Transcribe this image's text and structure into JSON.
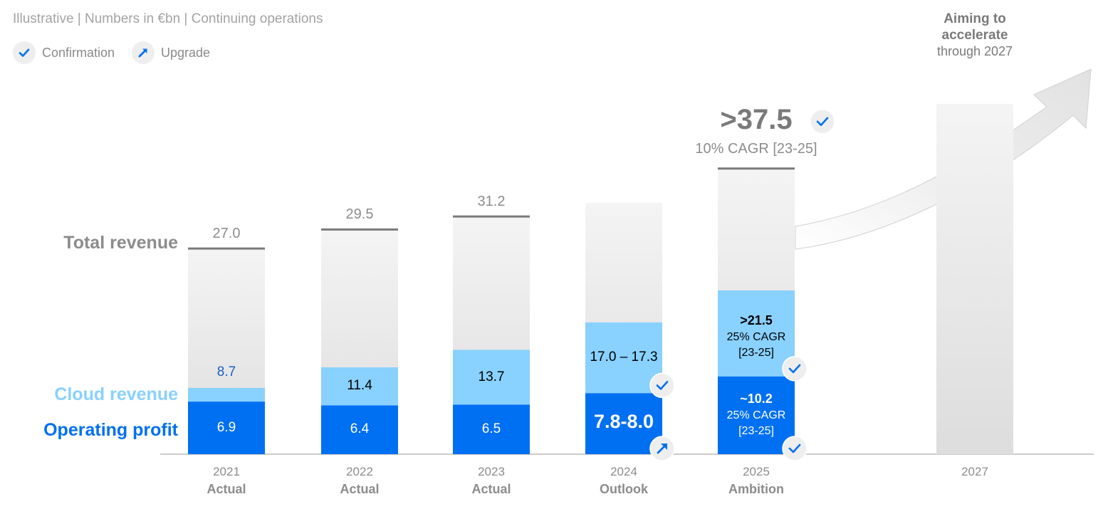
{
  "header": "Illustrative | Numbers in €bn | Continuing operations",
  "legend": {
    "confirmation": "Confirmation",
    "upgrade": "Upgrade"
  },
  "colors": {
    "operating_profit": "#0070f2",
    "cloud_revenue": "#89d1ff",
    "total_revenue": "#e6e6e6",
    "total_line": "#7a7a7a",
    "axis": "#cccccc",
    "badge": "#eeeeee"
  },
  "chart_data": {
    "type": "bar",
    "stacked": true,
    "title": "Illustrative | Numbers in €bn | Continuing operations",
    "units": "€bn",
    "series_labels": {
      "total": "Total revenue",
      "cloud": "Cloud revenue",
      "op": "Operating profit"
    },
    "categories": [
      {
        "year": "2021",
        "status": "Actual",
        "total": 27.0,
        "total_label": "27.0",
        "cloud": 8.7,
        "cloud_label": "8.7",
        "op": 6.9,
        "op_label": "6.9"
      },
      {
        "year": "2022",
        "status": "Actual",
        "total": 29.5,
        "total_label": "29.5",
        "cloud": 11.4,
        "cloud_label": "11.4",
        "op": 6.4,
        "op_label": "6.4"
      },
      {
        "year": "2023",
        "status": "Actual",
        "total": 31.2,
        "total_label": "31.2",
        "cloud": 13.7,
        "cloud_label": "13.7",
        "op": 6.5,
        "op_label": "6.5"
      },
      {
        "year": "2024",
        "status": "Outlook",
        "total": 33.0,
        "cloud": 17.3,
        "cloud_label": "17.0 – 17.3",
        "op": 8.0,
        "op_label": "7.8-8.0",
        "cloud_badge": "confirmation",
        "op_badge": "upgrade"
      },
      {
        "year": "2025",
        "status": "Ambition",
        "total": 37.5,
        "total_label": ">37.5",
        "total_sub": "10% CAGR [23-25]",
        "total_badge": "confirmation",
        "cloud": 21.5,
        "cloud_label": ">21.5",
        "cloud_sub1": "25% CAGR",
        "cloud_sub2": "[23-25]",
        "cloud_badge": "confirmation",
        "op": 10.2,
        "op_label": "~10.2",
        "op_sub1": "25% CAGR",
        "op_sub2": "[23-25]",
        "op_badge": "confirmation"
      },
      {
        "year": "2027",
        "status": "",
        "total": 46.0,
        "note": [
          "Aiming to",
          "accelerate",
          "through 2027"
        ]
      }
    ]
  }
}
